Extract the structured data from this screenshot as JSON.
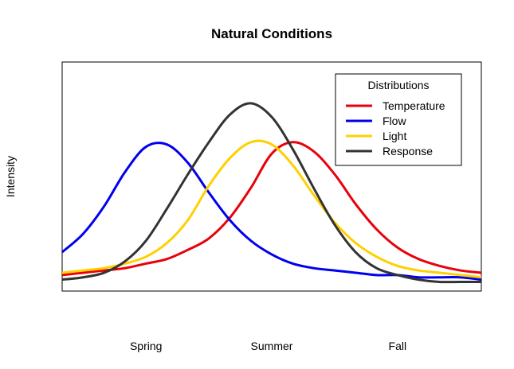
{
  "chart_data": {
    "type": "line",
    "title": "Natural Conditions",
    "xlabel": "",
    "ylabel": "Intensity",
    "x_tick_labels": [
      "Spring",
      "Summer",
      "Fall"
    ],
    "x_tick_positions": [
      0.2,
      0.5,
      0.8
    ],
    "xlim": [
      0,
      1
    ],
    "ylim": [
      0,
      1
    ],
    "grid": false,
    "legend": {
      "title": "Distributions",
      "placement": "top-right"
    },
    "series": [
      {
        "name": "Temperature",
        "color": "#e8000b",
        "x": [
          0,
          0.05,
          0.1,
          0.15,
          0.2,
          0.25,
          0.3,
          0.35,
          0.4,
          0.45,
          0.5,
          0.55,
          0.6,
          0.65,
          0.7,
          0.75,
          0.8,
          0.85,
          0.9,
          0.95,
          1
        ],
        "y": [
          0.07,
          0.08,
          0.09,
          0.1,
          0.12,
          0.14,
          0.18,
          0.23,
          0.32,
          0.45,
          0.6,
          0.65,
          0.61,
          0.51,
          0.38,
          0.27,
          0.19,
          0.14,
          0.11,
          0.09,
          0.08
        ]
      },
      {
        "name": "Flow",
        "color": "#0000ee",
        "x": [
          0,
          0.05,
          0.1,
          0.15,
          0.2,
          0.25,
          0.3,
          0.35,
          0.4,
          0.45,
          0.5,
          0.55,
          0.6,
          0.65,
          0.7,
          0.75,
          0.8,
          0.85,
          0.9,
          0.95,
          1
        ],
        "y": [
          0.17,
          0.25,
          0.37,
          0.52,
          0.63,
          0.64,
          0.56,
          0.43,
          0.31,
          0.22,
          0.16,
          0.12,
          0.1,
          0.09,
          0.08,
          0.07,
          0.07,
          0.06,
          0.06,
          0.06,
          0.05
        ]
      },
      {
        "name": "Light",
        "color": "#ffd000",
        "x": [
          0,
          0.05,
          0.1,
          0.15,
          0.2,
          0.25,
          0.3,
          0.35,
          0.4,
          0.45,
          0.5,
          0.55,
          0.6,
          0.65,
          0.7,
          0.75,
          0.8,
          0.85,
          0.9,
          0.95,
          1
        ],
        "y": [
          0.08,
          0.09,
          0.1,
          0.12,
          0.15,
          0.21,
          0.31,
          0.46,
          0.58,
          0.65,
          0.64,
          0.55,
          0.42,
          0.3,
          0.21,
          0.15,
          0.11,
          0.09,
          0.08,
          0.07,
          0.06
        ]
      },
      {
        "name": "Response",
        "color": "#333333",
        "x": [
          0,
          0.05,
          0.1,
          0.15,
          0.2,
          0.25,
          0.3,
          0.35,
          0.4,
          0.45,
          0.5,
          0.55,
          0.6,
          0.65,
          0.7,
          0.75,
          0.8,
          0.85,
          0.9,
          0.95,
          1
        ],
        "y": [
          0.05,
          0.06,
          0.08,
          0.13,
          0.22,
          0.36,
          0.51,
          0.65,
          0.77,
          0.82,
          0.76,
          0.62,
          0.45,
          0.29,
          0.17,
          0.1,
          0.07,
          0.05,
          0.04,
          0.04,
          0.04
        ]
      }
    ]
  }
}
